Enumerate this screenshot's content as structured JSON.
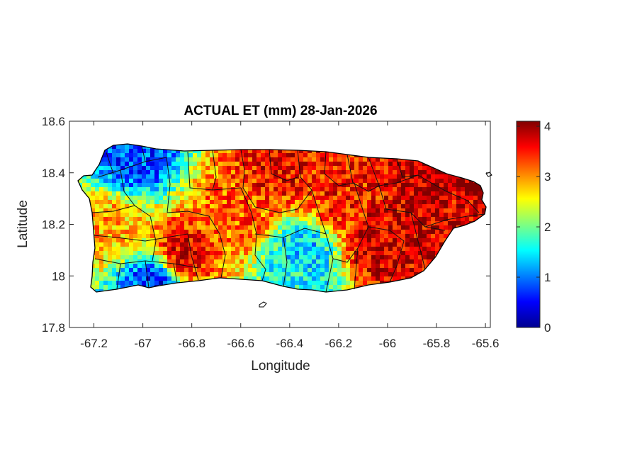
{
  "chart_data": {
    "type": "heatmap",
    "title": "ACTUAL ET (mm) 28-Jan-2026",
    "xlabel": "Longitude",
    "ylabel": "Latitude",
    "xlim": [
      -67.3,
      -65.58
    ],
    "ylim": [
      17.8,
      18.6
    ],
    "xticks": [
      -67.2,
      -67,
      -66.8,
      -66.6,
      -66.4,
      -66.2,
      -66,
      -65.8,
      -65.6
    ],
    "xtick_labels": [
      "-67.2",
      "-67",
      "-66.8",
      "-66.6",
      "-66.4",
      "-66.2",
      "-66",
      "-65.8",
      "-65.6"
    ],
    "yticks": [
      17.8,
      18,
      18.2,
      18.4,
      18.6
    ],
    "ytick_labels": [
      "17.8",
      "18",
      "18.2",
      "18.4",
      "18.6"
    ],
    "colorbar": {
      "colormap": "jet",
      "range": [
        0,
        4.1
      ],
      "ticks": [
        0,
        1,
        2,
        3,
        4
      ],
      "tick_labels": [
        "0",
        "1",
        "2",
        "3",
        "4"
      ]
    },
    "region": "Puerto Rico (municipality boundaries overlaid)",
    "sample_values": [
      {
        "lon": -67.05,
        "lat": 18.47,
        "value": 0.8
      },
      {
        "lon": -66.95,
        "lat": 17.98,
        "value": 0.6
      },
      {
        "lon": -66.35,
        "lat": 18.1,
        "value": 1.3
      },
      {
        "lon": -66.35,
        "lat": 18.0,
        "value": 1.6
      },
      {
        "lon": -65.82,
        "lat": 18.38,
        "value": 3.9
      },
      {
        "lon": -66.05,
        "lat": 18.12,
        "value": 3.8
      },
      {
        "lon": -66.85,
        "lat": 18.08,
        "value": 3.7
      },
      {
        "lon": -66.6,
        "lat": 18.25,
        "value": 3.2
      },
      {
        "lon": -66.2,
        "lat": 18.3,
        "value": 3.5
      },
      {
        "lon": -67.15,
        "lat": 18.2,
        "value": 2.9
      },
      {
        "lon": -66.45,
        "lat": 18.42,
        "value": 3.6
      },
      {
        "lon": -65.7,
        "lat": 18.25,
        "value": 3.7
      }
    ]
  }
}
